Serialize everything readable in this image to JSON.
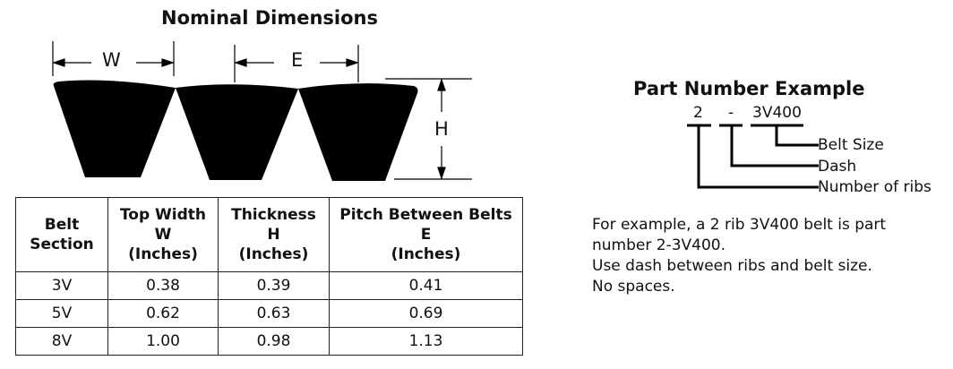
{
  "diagram": {
    "title": "Nominal Dimensions",
    "labels": {
      "w": "W",
      "e": "E",
      "h": "H"
    }
  },
  "table": {
    "headers": [
      [
        "Belt",
        "Section"
      ],
      [
        "Top Width",
        "W",
        "(Inches)"
      ],
      [
        "Thickness",
        "H",
        "(Inches)"
      ],
      [
        "Pitch Between Belts",
        "E",
        "(Inches)"
      ]
    ],
    "rows": [
      [
        "3V",
        "0.38",
        "0.39",
        "0.41"
      ],
      [
        "5V",
        "0.62",
        "0.63",
        "0.69"
      ],
      [
        "8V",
        "1.00",
        "0.98",
        "1.13"
      ]
    ]
  },
  "part_example": {
    "title": "Part Number Example",
    "ribs": "2",
    "dash": "-",
    "size": "3V400",
    "labels": {
      "size": "Belt Size",
      "dash": "Dash",
      "ribs": "Number of ribs"
    },
    "description": [
      "For example, a 2 rib 3V400 belt is part",
      "number 2-3V400.",
      "Use dash between ribs and belt size.",
      "No spaces."
    ]
  }
}
